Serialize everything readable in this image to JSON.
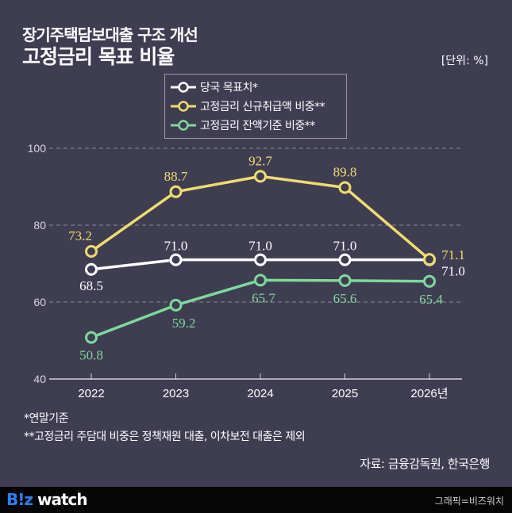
{
  "header": {
    "title_line1": "장기주택담보대출 구조 개선",
    "title_line2": "고정금리 목표 비율",
    "unit": "[단위: %]"
  },
  "colors": {
    "background": "#3f3d52",
    "target": "#ffffff",
    "new_loans": "#f0dc6e",
    "balance": "#7ed99a"
  },
  "chart_data": {
    "type": "line",
    "categories": [
      "2022",
      "2023",
      "2024",
      "2025",
      "2026년"
    ],
    "ylim": [
      40,
      100
    ],
    "yticks": [
      "40",
      "60",
      "80",
      "100"
    ],
    "grid": true,
    "legend_position": "top-center",
    "series": [
      {
        "name": "당국 목표치*",
        "color": "#ffffff",
        "values": [
          68.5,
          71.0,
          71.0,
          71.0,
          71.0
        ],
        "labels": [
          "68.5",
          "71.0",
          "71.0",
          "71.0",
          "71.0"
        ]
      },
      {
        "name": "고정금리 신규취급액 비중**",
        "color": "#f0dc6e",
        "values": [
          73.2,
          88.7,
          92.7,
          89.8,
          71.1
        ],
        "labels": [
          "73.2",
          "88.7",
          "92.7",
          "89.8",
          "71.1"
        ]
      },
      {
        "name": "고정금리 잔액기준 비중**",
        "color": "#7ed99a",
        "values": [
          50.8,
          59.2,
          65.7,
          65.6,
          65.4
        ],
        "labels": [
          "50.8",
          "59.2",
          "65.7",
          "65.6",
          "65.4"
        ]
      }
    ]
  },
  "footnotes": [
    "*연말기준",
    "**고정금리 주담대 비중은 정책재원 대출, 이차보전 대출은 제외"
  ],
  "source": "자료: 금융감독원, 한국은행",
  "footer": {
    "logo_b": "B!z",
    "logo_w": " watch",
    "credit": "그래픽=비즈워치"
  }
}
